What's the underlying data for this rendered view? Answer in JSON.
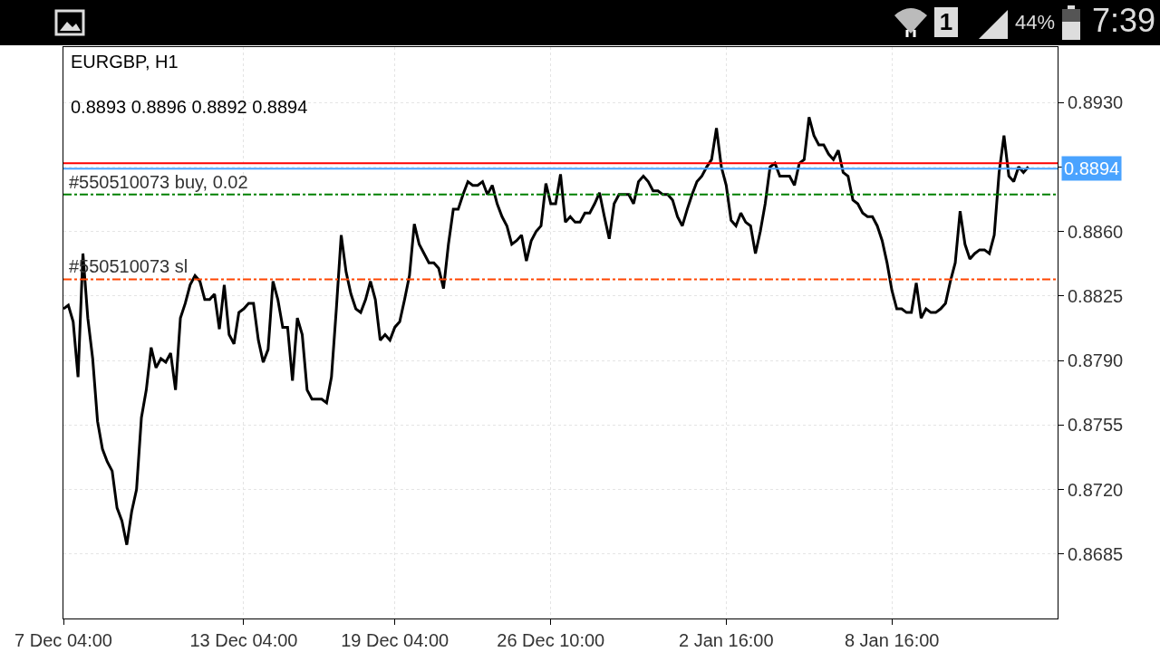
{
  "chart_data": {
    "type": "line",
    "title": "EURGBP, H1",
    "subtitle": "0.8893 0.8896 0.8892 0.8894",
    "annotations": [
      "1",
      "44%",
      "7:39"
    ],
    "categories": [
      "7 Dec 04:00",
      null,
      null,
      null,
      null,
      null,
      null,
      null,
      null,
      null,
      null,
      null,
      null,
      null,
      null,
      null,
      null,
      null,
      null,
      null,
      null,
      null,
      null,
      null,
      null,
      null,
      null,
      null,
      null,
      null,
      null,
      null,
      null,
      null,
      null,
      null,
      null,
      "13 Dec 04:00",
      null,
      null,
      null,
      null,
      null,
      null,
      null,
      null,
      null,
      null,
      null,
      null,
      null,
      null,
      null,
      null,
      null,
      null,
      null,
      null,
      null,
      null,
      null,
      null,
      null,
      null,
      null,
      null,
      null,
      null,
      "19 Dec 04:00",
      null,
      null,
      null,
      null,
      null,
      null,
      null,
      null,
      null,
      null,
      null,
      null,
      null,
      null,
      null,
      null,
      null,
      null,
      null,
      null,
      null,
      null,
      null,
      null,
      null,
      null,
      null,
      null,
      null,
      null,
      null,
      "26 Dec 10:00",
      null,
      null,
      null,
      null,
      null,
      null,
      null,
      null,
      null,
      null,
      null,
      null,
      null,
      null,
      null,
      null,
      null,
      null,
      null,
      null,
      null,
      null,
      null,
      null,
      null,
      null,
      null,
      null,
      null,
      null,
      null,
      null,
      null,
      null,
      null,
      "2 Jan 16:00",
      null,
      null,
      null,
      null,
      null,
      null,
      null,
      null,
      null,
      null,
      null,
      null,
      null,
      null,
      null,
      null,
      null,
      null,
      null,
      null,
      null,
      null,
      null,
      null,
      null,
      null,
      null,
      null,
      null,
      null,
      null,
      null,
      null,
      "8 Jan 16:00",
      null,
      null,
      null,
      null,
      null,
      null,
      null,
      null,
      null,
      null,
      null,
      null,
      null,
      null,
      null,
      null,
      null,
      null,
      null,
      null,
      null,
      null,
      null,
      null,
      null,
      null,
      null,
      null,
      null,
      null,
      null,
      null,
      null,
      null
    ],
    "series": [
      {
        "color": "#000000",
        "values": [
          0.8818,
          0.882,
          0.8811,
          0.8781,
          0.8848,
          0.8813,
          0.8791,
          0.8757,
          0.8742,
          0.8735,
          0.873,
          0.871,
          0.8703,
          0.869,
          0.8708,
          0.872,
          0.8759,
          0.8774,
          0.8797,
          0.8786,
          0.8791,
          0.8789,
          0.8794,
          0.8774,
          0.8813,
          0.8821,
          0.8831,
          0.8836,
          0.8833,
          0.8823,
          0.8823,
          0.8826,
          0.8807,
          0.8831,
          0.8804,
          0.8799,
          0.8816,
          0.8818,
          0.8821,
          0.8821,
          0.8801,
          0.8789,
          0.8796,
          0.8833,
          0.8823,
          0.8808,
          0.8808,
          0.8779,
          0.8813,
          0.8804,
          0.8774,
          0.8769,
          0.8769,
          0.8769,
          0.8767,
          0.8781,
          0.8818,
          0.8858,
          0.8838,
          0.8826,
          0.8818,
          0.8816,
          0.8823,
          0.8833,
          0.8823,
          0.8801,
          0.8804,
          0.8801,
          0.8808,
          0.8811,
          0.8823,
          0.8836,
          0.8864,
          0.8853,
          0.8848,
          0.8843,
          0.8843,
          0.884,
          0.8829,
          0.8853,
          0.8872,
          0.8872,
          0.888,
          0.8887,
          0.8885,
          0.8885,
          0.8887,
          0.888,
          0.8885,
          0.8875,
          0.8868,
          0.8863,
          0.8853,
          0.8855,
          0.8858,
          0.8844,
          0.8855,
          0.886,
          0.8863,
          0.8886,
          0.8875,
          0.8875,
          0.8891,
          0.8865,
          0.8868,
          0.8865,
          0.8865,
          0.887,
          0.887,
          0.8875,
          0.8881,
          0.8868,
          0.8856,
          0.8875,
          0.888,
          0.888,
          0.888,
          0.8875,
          0.8887,
          0.889,
          0.8887,
          0.8882,
          0.8882,
          0.888,
          0.888,
          0.8877,
          0.8868,
          0.8863,
          0.8872,
          0.888,
          0.8887,
          0.889,
          0.8895,
          0.8899,
          0.8916,
          0.8895,
          0.8885,
          0.8866,
          0.8863,
          0.887,
          0.8865,
          0.8863,
          0.8848,
          0.886,
          0.8875,
          0.8895,
          0.8897,
          0.889,
          0.889,
          0.889,
          0.8885,
          0.8897,
          0.8899,
          0.8922,
          0.8912,
          0.8907,
          0.8907,
          0.8902,
          0.8899,
          0.8904,
          0.8892,
          0.889,
          0.8877,
          0.8875,
          0.887,
          0.8868,
          0.8868,
          0.8863,
          0.8855,
          0.8843,
          0.8828,
          0.8818,
          0.8818,
          0.8816,
          0.8816,
          0.8832,
          0.8813,
          0.8818,
          0.8816,
          0.8816,
          0.8818,
          0.8821,
          0.8833,
          0.8843,
          0.8871,
          0.8853,
          0.8845,
          0.8848,
          0.885,
          0.885,
          0.8848,
          0.8858,
          0.8892,
          0.8912,
          0.889,
          0.8887,
          0.8895,
          0.8892,
          0.8895,
          null,
          null,
          null,
          null,
          null,
          null
        ]
      }
    ],
    "ylim": [
      0.865,
      0.896
    ],
    "yticks": [
      0.8685,
      {
        "value": 0.872,
        "label": "0.8720"
      },
      0.8755,
      {
        "value": 0.879,
        "label": "0.8790"
      },
      0.8825,
      {
        "value": 0.886,
        "label": "0.8860"
      },
      {
        "value": 0.8895,
        "label": null
      },
      {
        "value": 0.893,
        "label": "0.8930"
      }
    ],
    "ref_lines": [
      {
        "axis": "y",
        "value": 0.8897,
        "color": "#ff0000",
        "line_style": "solid"
      },
      {
        "axis": "y",
        "value": 0.8894,
        "label": "0.8894",
        "color": "#4aa3ff",
        "line_style": "solid"
      },
      {
        "axis": "y",
        "value": 0.888,
        "label": "#550510073 buy, 0.02",
        "color": "#008000",
        "line_style": "dashdot"
      },
      {
        "axis": "y",
        "value": 0.8834,
        "label": "#550510073 sl",
        "color": "#ff4500",
        "line_style": "dashdot"
      }
    ],
    "grid": true,
    "marker": "none"
  }
}
